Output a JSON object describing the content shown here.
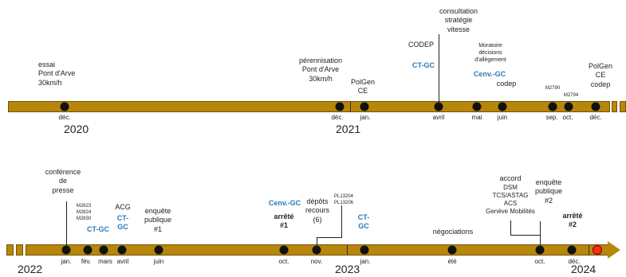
{
  "colors": {
    "bar": "#b8860b",
    "accent": "#2a7ab8",
    "end_marker": "#ff2a1a"
  },
  "timeline1": {
    "years": [
      "2020",
      "2021"
    ],
    "months": {
      "dec2020": "déc.",
      "dec2020b": "déc.",
      "jan": "jan.",
      "avril": "avril",
      "mai": "mai",
      "juin": "juin",
      "sep": "sep.",
      "oct": "oct.",
      "dec": "déc."
    },
    "events": {
      "essai": "essai\nPont d'Arve\n30km/h",
      "perennisation": "pérennisation\nPont d'Arve\n30km/h",
      "polgen1": "PolGen\nCE",
      "codep1": "CODEP",
      "ctgc1": "CT-GC",
      "consultation": "consultation\nstratégie\nvitesse",
      "moratoire": "Moratoire\ndécisions\nd'allègement",
      "cenvgc1": "Cenv.-GC",
      "codep2": "codep",
      "m2790": "M2790",
      "m2794": "M2794",
      "polgen2": "PolGen\nCE\ncodep"
    }
  },
  "timeline2": {
    "years": [
      "2022",
      "2023",
      "2024"
    ],
    "months": {
      "jan": "jan.",
      "fev": "fév.",
      "mars": "mars",
      "avril": "avril",
      "juin": "juin",
      "oct": "oct.",
      "nov": "nov.",
      "jan2": "jan.",
      "ete": "été",
      "oct2": "oct.",
      "dec": "déc."
    },
    "events": {
      "conference": "conférence\nde\npresse",
      "motions": "M2823\nM2824\nM2830",
      "ctgc_fev": "CT-GC",
      "acg": "ACG",
      "ctgc_avril": "CT-\nGC",
      "enquete1": "enquête\npublique\n#1",
      "cenvgc2": "Cenv.-GC",
      "arrete1": "arrêté\n#1",
      "depots": "dépôts\nrecours\n(6)",
      "pl": "PL13204\nPL13206",
      "ctgc_jan": "CT-\nGC",
      "negociations": "négociations",
      "accord_title": "accord",
      "accord_list": "DSM\nTCS/ASTAG\nACS\nGenève Mobilités",
      "enquete2": "enquête\npublique\n#2",
      "arrete2": "arrêté\n#2"
    }
  }
}
